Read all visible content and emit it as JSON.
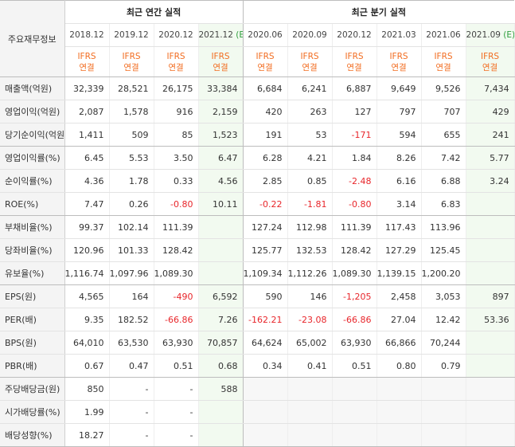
{
  "header": {
    "corner": "주요재무정보",
    "annual_title": "최근 연간 실적",
    "quarter_title": "최근 분기 실적",
    "periods": [
      {
        "label": "2018.12",
        "tag": ""
      },
      {
        "label": "2019.12",
        "tag": ""
      },
      {
        "label": "2020.12",
        "tag": ""
      },
      {
        "label": "2021.12",
        "tag": "(E)"
      },
      {
        "label": "2020.06",
        "tag": ""
      },
      {
        "label": "2020.09",
        "tag": ""
      },
      {
        "label": "2020.12",
        "tag": ""
      },
      {
        "label": "2021.03",
        "tag": ""
      },
      {
        "label": "2021.06",
        "tag": ""
      },
      {
        "label": "2021.09",
        "tag": "(E)"
      }
    ],
    "ifrs_line1": "IFRS",
    "ifrs_line2": "연결"
  },
  "rows": [
    {
      "label": "매출액(억원)",
      "values": [
        "32,339",
        "28,521",
        "26,175",
        "33,384",
        "6,684",
        "6,241",
        "6,887",
        "9,649",
        "9,526",
        "7,434"
      ]
    },
    {
      "label": "영업이익(억원)",
      "values": [
        "2,087",
        "1,578",
        "916",
        "2,159",
        "420",
        "263",
        "127",
        "797",
        "707",
        "429"
      ]
    },
    {
      "label": "당기순이익(억원)",
      "values": [
        "1,411",
        "509",
        "85",
        "1,523",
        "191",
        "53",
        "-171",
        "594",
        "655",
        "241"
      ]
    },
    {
      "label": "영업이익률(%)",
      "values": [
        "6.45",
        "5.53",
        "3.50",
        "6.47",
        "6.28",
        "4.21",
        "1.84",
        "8.26",
        "7.42",
        "5.77"
      ]
    },
    {
      "label": "순이익률(%)",
      "values": [
        "4.36",
        "1.78",
        "0.33",
        "4.56",
        "2.85",
        "0.85",
        "-2.48",
        "6.16",
        "6.88",
        "3.24"
      ]
    },
    {
      "label": "ROE(%)",
      "values": [
        "7.47",
        "0.26",
        "-0.80",
        "10.11",
        "-0.22",
        "-1.81",
        "-0.80",
        "3.14",
        "6.83",
        ""
      ]
    },
    {
      "label": "부채비율(%)",
      "values": [
        "99.37",
        "102.14",
        "111.39",
        "",
        "127.24",
        "112.98",
        "111.39",
        "117.43",
        "113.96",
        ""
      ]
    },
    {
      "label": "당좌비율(%)",
      "values": [
        "120.96",
        "101.33",
        "128.42",
        "",
        "125.77",
        "132.53",
        "128.42",
        "127.29",
        "125.45",
        ""
      ]
    },
    {
      "label": "유보율(%)",
      "values": [
        "1,116.74",
        "1,097.96",
        "1,089.30",
        "",
        "1,109.34",
        "1,112.26",
        "1,089.30",
        "1,139.15",
        "1,200.20",
        ""
      ]
    },
    {
      "label": "EPS(원)",
      "values": [
        "4,565",
        "164",
        "-490",
        "6,592",
        "590",
        "146",
        "-1,205",
        "2,458",
        "3,053",
        "897"
      ]
    },
    {
      "label": "PER(배)",
      "values": [
        "9.35",
        "182.52",
        "-66.86",
        "7.26",
        "-162.21",
        "-23.08",
        "-66.86",
        "27.04",
        "12.42",
        "53.36"
      ]
    },
    {
      "label": "BPS(원)",
      "values": [
        "64,010",
        "63,530",
        "63,930",
        "70,857",
        "64,624",
        "65,002",
        "63,930",
        "66,866",
        "70,244",
        ""
      ]
    },
    {
      "label": "PBR(배)",
      "values": [
        "0.67",
        "0.47",
        "0.51",
        "0.68",
        "0.34",
        "0.41",
        "0.51",
        "0.80",
        "0.79",
        ""
      ]
    },
    {
      "label": "주당배당금(원)",
      "values": [
        "850",
        "-",
        "-",
        "588",
        "",
        "",
        "",
        "",
        "",
        ""
      ]
    },
    {
      "label": "시가배당률(%)",
      "values": [
        "1.99",
        "-",
        "-",
        "",
        "",
        "",
        "",
        "",
        "",
        ""
      ]
    },
    {
      "label": "배당성향(%)",
      "values": [
        "18.27",
        "-",
        "-",
        "",
        "",
        "",
        "",
        "",
        "",
        ""
      ]
    }
  ]
}
